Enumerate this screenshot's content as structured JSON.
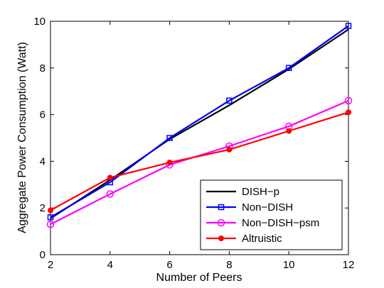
{
  "chart_data": {
    "type": "line",
    "xlabel": "Number of Peers",
    "ylabel": "Aggregate Power Consumption (Watt)",
    "x": [
      2,
      4,
      6,
      8,
      10,
      12
    ],
    "xlim": [
      2,
      12
    ],
    "ylim": [
      0,
      10
    ],
    "xticks": [
      "2",
      "4",
      "6",
      "8",
      "10",
      "12"
    ],
    "yticks": [
      "0",
      "2",
      "4",
      "6",
      "8",
      "10"
    ],
    "grid": false,
    "legend_position": "bottom-right",
    "series": [
      {
        "name": "DISH−p",
        "color": "#000000",
        "marker": "none",
        "values": [
          1.55,
          3.2,
          4.95,
          6.4,
          7.95,
          9.65
        ]
      },
      {
        "name": "Non−DISH",
        "color": "#0000ff",
        "marker": "square",
        "values": [
          1.6,
          3.1,
          5.0,
          6.6,
          8.0,
          9.8
        ]
      },
      {
        "name": "Non−DISH−psm",
        "color": "#ff00ff",
        "marker": "circle-open",
        "values": [
          1.3,
          2.6,
          3.85,
          4.65,
          5.5,
          6.6
        ]
      },
      {
        "name": "Altruistic",
        "color": "#ff0000",
        "marker": "circle-filled",
        "values": [
          1.9,
          3.3,
          3.95,
          4.5,
          5.3,
          6.1
        ]
      }
    ]
  }
}
